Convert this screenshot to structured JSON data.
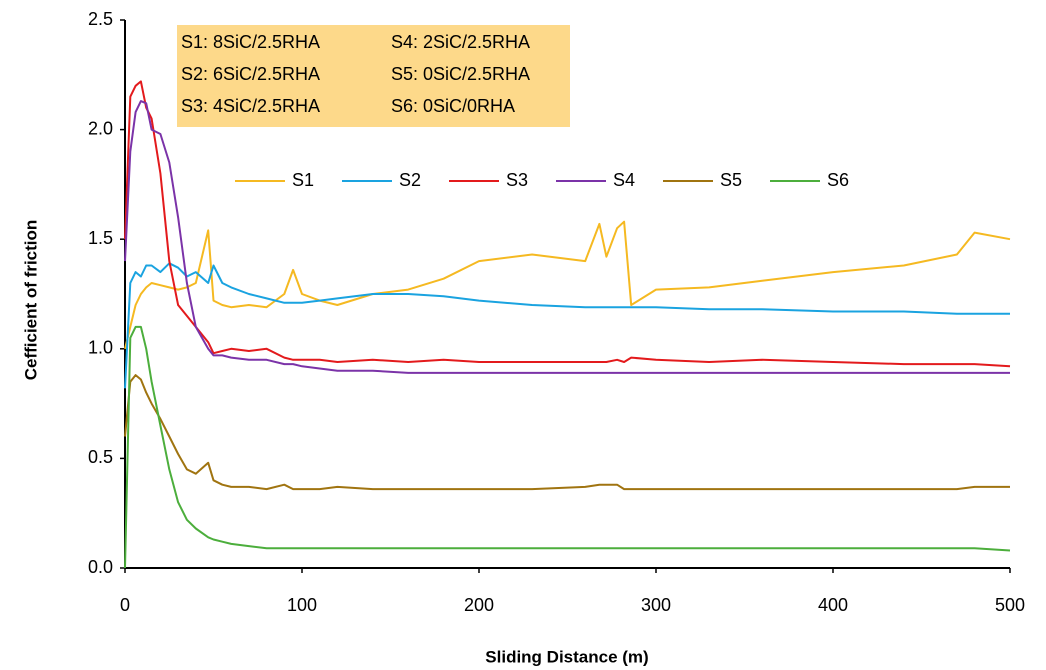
{
  "chart_data": {
    "type": "line",
    "xlabel": "Sliding Distance (m)",
    "ylabel": "Cefficient of friction",
    "annotation": [
      "S1: 8SiC/2.5RHA",
      "S4: 2SiC/2.5RHA",
      "S2: 6SiC/2.5RHA",
      "S5: 0SiC/2.5RHA",
      "S3: 4SiC/2.5RHA",
      "S6: 0SiC/0RHA"
    ],
    "annotation_color": "#fdd98a",
    "xlim": [
      0,
      500
    ],
    "xticks": [
      0,
      100,
      200,
      300,
      400,
      500
    ],
    "ylim": [
      0,
      2.5
    ],
    "yticks": [
      {
        "value": 0,
        "label": "0.0"
      },
      0.5,
      {
        "value": 1,
        "label": "1.0"
      },
      1.5,
      {
        "value": 2,
        "label": "2.0"
      },
      2.5
    ],
    "grid": false,
    "x": [
      0,
      3,
      6,
      9,
      12,
      15,
      20,
      25,
      30,
      35,
      40,
      47,
      50,
      55,
      60,
      70,
      80,
      90,
      95,
      100,
      110,
      120,
      140,
      160,
      180,
      200,
      230,
      260,
      268,
      272,
      278,
      282,
      286,
      300,
      330,
      360,
      400,
      440,
      470,
      480,
      500
    ],
    "series": [
      {
        "name": "S1",
        "color": "#f5b921",
        "values": [
          1.0,
          1.1,
          1.2,
          1.25,
          1.28,
          1.3,
          1.29,
          1.28,
          1.27,
          1.28,
          1.3,
          1.54,
          1.22,
          1.2,
          1.19,
          1.2,
          1.19,
          1.25,
          1.36,
          1.25,
          1.22,
          1.2,
          1.25,
          1.27,
          1.32,
          1.4,
          1.43,
          1.4,
          1.57,
          1.42,
          1.55,
          1.58,
          1.2,
          1.27,
          1.28,
          1.31,
          1.35,
          1.38,
          1.43,
          1.53,
          1.5
        ]
      },
      {
        "name": "S2",
        "color": "#1aa3e0",
        "values": [
          0.82,
          1.3,
          1.35,
          1.33,
          1.38,
          1.38,
          1.35,
          1.39,
          1.37,
          1.33,
          1.35,
          1.3,
          1.38,
          1.3,
          1.28,
          1.25,
          1.23,
          1.21,
          1.21,
          1.21,
          1.22,
          1.23,
          1.25,
          1.25,
          1.24,
          1.22,
          1.2,
          1.19,
          1.19,
          1.19,
          1.19,
          1.19,
          1.19,
          1.19,
          1.18,
          1.18,
          1.17,
          1.17,
          1.16,
          1.16,
          1.16
        ]
      },
      {
        "name": "S3",
        "color": "#e31a1c",
        "values": [
          1.5,
          2.15,
          2.2,
          2.22,
          2.1,
          2.05,
          1.8,
          1.4,
          1.2,
          1.15,
          1.1,
          1.03,
          0.98,
          0.99,
          1.0,
          0.99,
          1.0,
          0.96,
          0.95,
          0.95,
          0.95,
          0.94,
          0.95,
          0.94,
          0.95,
          0.94,
          0.94,
          0.94,
          0.94,
          0.94,
          0.95,
          0.94,
          0.96,
          0.95,
          0.94,
          0.95,
          0.94,
          0.93,
          0.93,
          0.93,
          0.92
        ]
      },
      {
        "name": "S4",
        "color": "#7b33a8",
        "values": [
          1.4,
          1.9,
          2.08,
          2.13,
          2.12,
          2.0,
          1.98,
          1.85,
          1.6,
          1.3,
          1.1,
          1.0,
          0.97,
          0.97,
          0.96,
          0.95,
          0.95,
          0.93,
          0.93,
          0.92,
          0.91,
          0.9,
          0.9,
          0.89,
          0.89,
          0.89,
          0.89,
          0.89,
          0.89,
          0.89,
          0.89,
          0.89,
          0.89,
          0.89,
          0.89,
          0.89,
          0.89,
          0.89,
          0.89,
          0.89,
          0.89
        ]
      },
      {
        "name": "S5",
        "color": "#a07410",
        "values": [
          0.6,
          0.85,
          0.88,
          0.86,
          0.8,
          0.75,
          0.68,
          0.6,
          0.52,
          0.45,
          0.43,
          0.48,
          0.4,
          0.38,
          0.37,
          0.37,
          0.36,
          0.38,
          0.36,
          0.36,
          0.36,
          0.37,
          0.36,
          0.36,
          0.36,
          0.36,
          0.36,
          0.37,
          0.38,
          0.38,
          0.38,
          0.36,
          0.36,
          0.36,
          0.36,
          0.36,
          0.36,
          0.36,
          0.36,
          0.37,
          0.37
        ]
      },
      {
        "name": "S6",
        "color": "#4cae3c",
        "values": [
          0.0,
          1.05,
          1.1,
          1.1,
          1.0,
          0.85,
          0.65,
          0.45,
          0.3,
          0.22,
          0.18,
          0.14,
          0.13,
          0.12,
          0.11,
          0.1,
          0.09,
          0.09,
          0.09,
          0.09,
          0.09,
          0.09,
          0.09,
          0.09,
          0.09,
          0.09,
          0.09,
          0.09,
          0.09,
          0.09,
          0.09,
          0.09,
          0.09,
          0.09,
          0.09,
          0.09,
          0.09,
          0.09,
          0.09,
          0.09,
          0.08
        ]
      }
    ]
  }
}
